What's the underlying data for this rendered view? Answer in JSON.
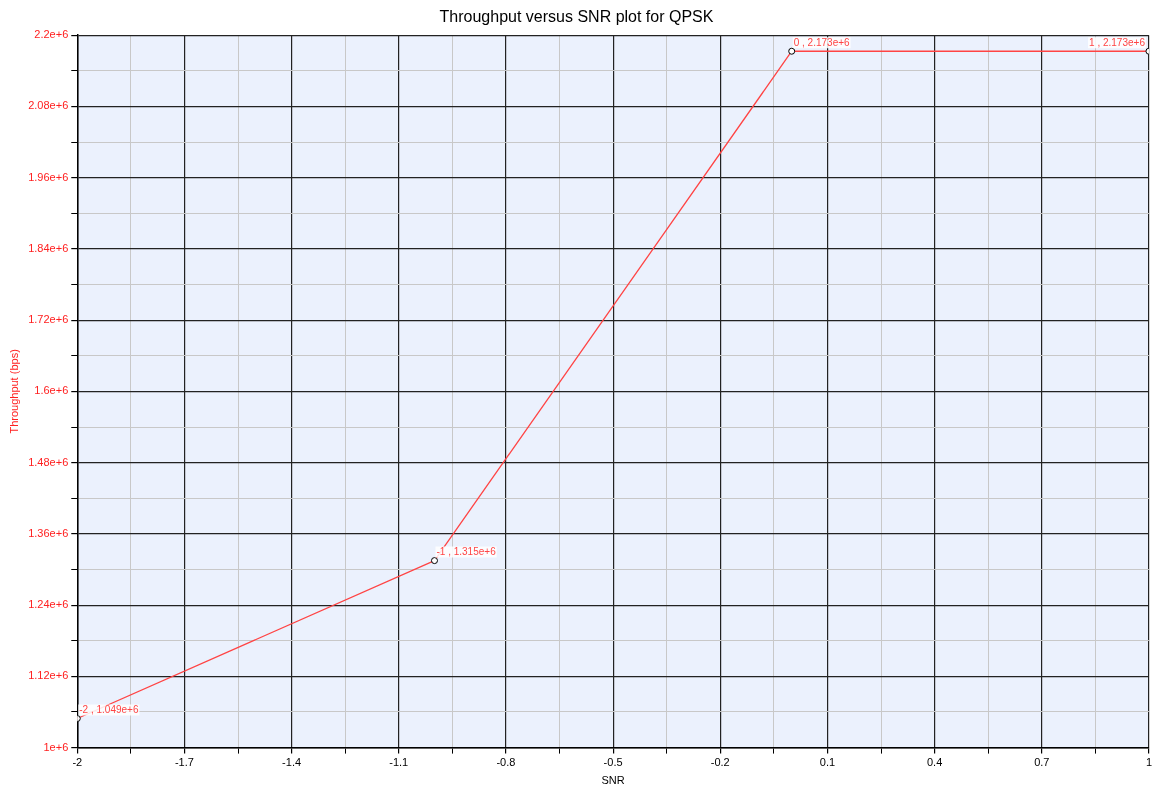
{
  "chart_data": {
    "type": "line",
    "title": "Throughput versus SNR plot for QPSK",
    "xlabel": "SNR",
    "ylabel": "Throughput (bps)",
    "x": [
      -2,
      -1,
      0,
      1
    ],
    "series": [
      {
        "color": "#ff4444",
        "values": [
          1049000,
          1315000,
          2173000,
          2173000
        ]
      }
    ],
    "annotations": [
      {
        "text": "-2 , 1.049e+6",
        "x": -2,
        "y": 1049000
      },
      {
        "text": "-1 , 1.315e+6",
        "x": -1,
        "y": 1315000
      },
      {
        "text": "0 , 2.173e+6",
        "x": 0,
        "y": 2173000
      },
      {
        "text": "1 , 2.173e+6",
        "x": 1,
        "y": 2173000
      }
    ],
    "xlim": [
      -2,
      1
    ],
    "xticks": [
      -2,
      {
        "value": -1.85,
        "label": null
      },
      -1.7,
      {
        "value": -1.55,
        "label": null
      },
      -1.4,
      {
        "value": -1.25,
        "label": null
      },
      -1.1,
      {
        "value": -0.95,
        "label": null
      },
      -0.8,
      {
        "value": -0.65,
        "label": null
      },
      -0.5,
      {
        "value": -0.35,
        "label": null
      },
      -0.2,
      {
        "value": -0.05,
        "label": null
      },
      0.1,
      {
        "value": 0.25,
        "label": null
      },
      0.4,
      {
        "value": 0.55,
        "label": null
      },
      0.7,
      {
        "value": 0.85,
        "label": null
      },
      1
    ],
    "ylim": [
      1000000,
      2200000
    ],
    "yticks": [
      {
        "value": 1000000,
        "label": "1e+6"
      },
      {
        "value": 1060000,
        "label": null
      },
      {
        "value": 1120000,
        "label": "1.12e+6"
      },
      {
        "value": 1180000,
        "label": null
      },
      {
        "value": 1240000,
        "label": "1.24e+6"
      },
      {
        "value": 1300000,
        "label": null
      },
      {
        "value": 1360000,
        "label": "1.36e+6"
      },
      {
        "value": 1420000,
        "label": null
      },
      {
        "value": 1480000,
        "label": "1.48e+6"
      },
      {
        "value": 1540000,
        "label": null
      },
      {
        "value": 1600000,
        "label": "1.6e+6"
      },
      {
        "value": 1660000,
        "label": null
      },
      {
        "value": 1720000,
        "label": "1.72e+6"
      },
      {
        "value": 1780000,
        "label": null
      },
      {
        "value": 1840000,
        "label": "1.84e+6"
      },
      {
        "value": 1900000,
        "label": null
      },
      {
        "value": 1960000,
        "label": "1.96e+6"
      },
      {
        "value": 2020000,
        "label": null
      },
      {
        "value": 2080000,
        "label": "2.08e+6"
      },
      {
        "value": 2140000,
        "label": null
      },
      {
        "value": 2200000,
        "label": "2.2e+6"
      }
    ],
    "grid": true,
    "marker": "circle",
    "line_style": "solid",
    "legend": false
  }
}
